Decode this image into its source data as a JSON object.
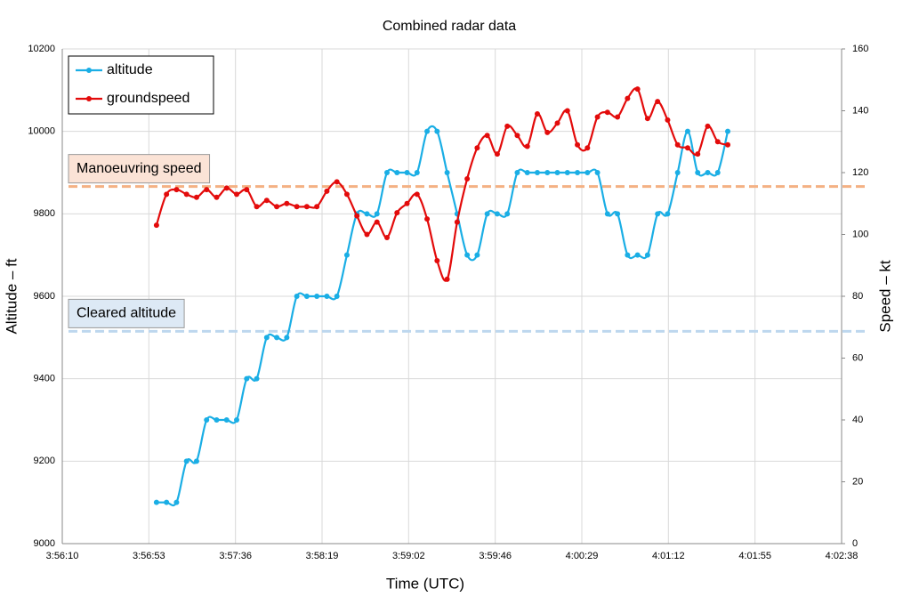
{
  "chart_data": {
    "type": "line",
    "title": "Combined radar data",
    "x_label": "Time (UTC)",
    "y_label": "Altitude – ft",
    "y2_label": "Speed – kt",
    "grid": true,
    "legend": "top-left",
    "smooth": true,
    "x": [
      14217,
      14222,
      14227,
      14232,
      14237,
      14242,
      14247,
      14252,
      14257,
      14262,
      14267,
      14272,
      14277,
      14282,
      14287,
      14292,
      14297,
      14302,
      14307,
      14312,
      14317,
      14322,
      14327,
      14332,
      14337,
      14342,
      14347,
      14352,
      14357,
      14362,
      14367,
      14372,
      14377,
      14382,
      14387,
      14392,
      14397,
      14402,
      14407,
      14412,
      14417,
      14422,
      14427,
      14432,
      14437,
      14442,
      14447,
      14452,
      14457,
      14462,
      14467,
      14472,
      14477,
      14482,
      14487,
      14492,
      14497,
      14502
    ],
    "xlim": [
      14170,
      14558.8
    ],
    "xticks": [
      {
        "value": 14170,
        "label": "3:56:10"
      },
      {
        "value": 14213.2,
        "label": "3:56:53"
      },
      {
        "value": 14256.4,
        "label": "3:57:36"
      },
      {
        "value": 14299.6,
        "label": "3:58:19"
      },
      {
        "value": 14342.8,
        "label": "3:59:02"
      },
      {
        "value": 14386,
        "label": "3:59:46"
      },
      {
        "value": 14429.2,
        "label": "4:00:29"
      },
      {
        "value": 14472.4,
        "label": "4:01:12"
      },
      {
        "value": 14515.6,
        "label": "4:01:55"
      },
      {
        "value": 14558.8,
        "label": "4:02:38"
      }
    ],
    "ylim": [
      9000,
      10200
    ],
    "yticks": [
      9000,
      9200,
      9400,
      9600,
      9800,
      10000,
      10200
    ],
    "y2lim": [
      0,
      160
    ],
    "y2ticks": [
      0,
      20,
      40,
      60,
      80,
      100,
      120,
      140,
      160
    ],
    "series": [
      {
        "name": "altitude",
        "color": "#1aaee5",
        "values": [
          9100,
          9100,
          9100,
          9200,
          9200,
          9300,
          9300,
          9300,
          9300,
          9400,
          9400,
          9500,
          9500,
          9500,
          9600,
          9600,
          9600,
          9600,
          9600,
          9700,
          9800,
          9800,
          9800,
          9900,
          9900,
          9900,
          9900,
          10000,
          10000,
          9900,
          9800,
          9700,
          9700,
          9800,
          9800,
          9800,
          9900,
          9900,
          9900,
          9900,
          9900,
          9900,
          9900,
          9900,
          9900,
          9800,
          9800,
          9700,
          9700,
          9700,
          9800,
          9800,
          9900,
          10000,
          9900,
          9900,
          9900,
          10000
        ]
      },
      {
        "name": "groundspeed",
        "color": "#e30b0b",
        "axis": "y2",
        "values": [
          103,
          113,
          114.5,
          113,
          112,
          114.5,
          112,
          115,
          113,
          114.5,
          109,
          111,
          109,
          110,
          109,
          109,
          109,
          114,
          117,
          113,
          106,
          100,
          104,
          99,
          107,
          110,
          113,
          105,
          91.5,
          85.5,
          104,
          118,
          128,
          132,
          126,
          135,
          132,
          128.5,
          139,
          133,
          136,
          140,
          129,
          128,
          138,
          139.5,
          138,
          144,
          147,
          137.5,
          143,
          137,
          129,
          128,
          126,
          135,
          130,
          129
        ]
      }
    ],
    "reference_lines": [
      {
        "label": "Manoeuvring speed",
        "value": 115.5,
        "axis": "y2",
        "color": "#f4b183",
        "box_color": "#fbe3d6"
      },
      {
        "label": "Cleared altitude",
        "value": 9515,
        "axis": "y",
        "color": "#bdd7ee",
        "box_color": "#dde9f5"
      }
    ]
  }
}
